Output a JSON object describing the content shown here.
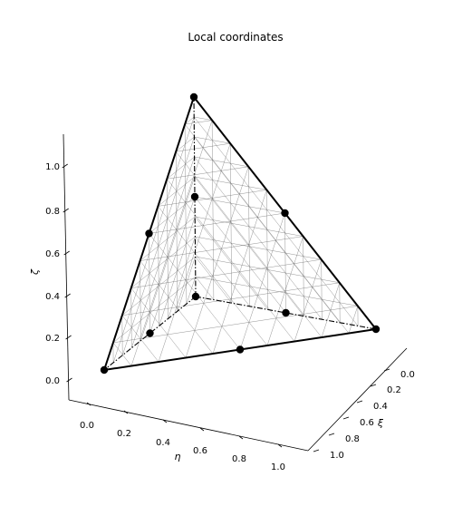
{
  "chart_data": {
    "type": "scatter",
    "title": "Local coordinates",
    "xlabel": "η",
    "ylabel": "ξ",
    "zlabel": "ζ",
    "x_ticks": [
      "0.0",
      "0.2",
      "0.4",
      "0.6",
      "0.8",
      "1.0"
    ],
    "y_ticks": [
      "0.0",
      "0.2",
      "0.4",
      "0.6",
      "0.8",
      "1.0"
    ],
    "z_ticks": [
      "0.0",
      "0.2",
      "0.4",
      "0.6",
      "0.8",
      "1.0"
    ],
    "grid": false,
    "nodes": [
      {
        "xi": 0,
        "eta": 0,
        "zeta": 0
      },
      {
        "xi": 1,
        "eta": 0,
        "zeta": 0
      },
      {
        "xi": 0,
        "eta": 1,
        "zeta": 0
      },
      {
        "xi": 0,
        "eta": 0,
        "zeta": 1
      },
      {
        "xi": 0.5,
        "eta": 0,
        "zeta": 0
      },
      {
        "xi": 0.5,
        "eta": 0.5,
        "zeta": 0
      },
      {
        "xi": 0,
        "eta": 0.5,
        "zeta": 0
      },
      {
        "xi": 0,
        "eta": 0,
        "zeta": 0.5
      },
      {
        "xi": 0.5,
        "eta": 0,
        "zeta": 0.5
      },
      {
        "xi": 0,
        "eta": 0.5,
        "zeta": 0.5
      }
    ],
    "element": "10-node quadratic tetrahedron",
    "colors": {
      "edges": "#000000",
      "mesh": "#666666",
      "nodes": "#000000"
    }
  }
}
